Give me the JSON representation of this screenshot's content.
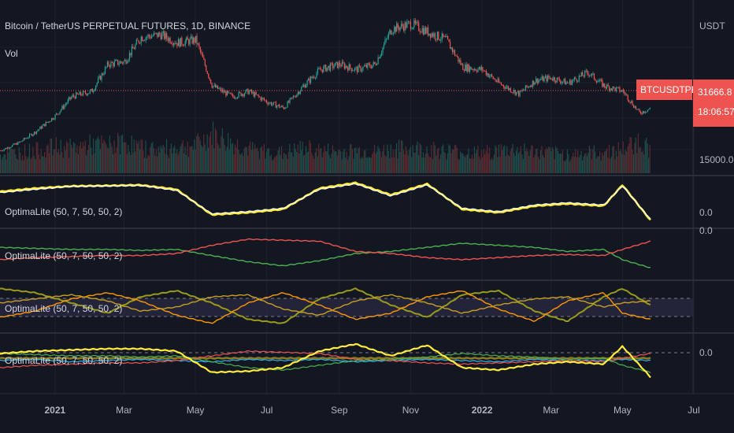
{
  "header": {
    "symbol_title": "Bitcoin / TetherUS PERPETUAL FUTURES, 1D, BINANCE",
    "vol_label": "Vol",
    "currency": "USDT"
  },
  "price_tag": {
    "ticker": "BTCUSDTPERP",
    "price": "31666.8",
    "countdown": "18:06:57",
    "color": "#ef5350"
  },
  "colors": {
    "background": "#131722",
    "grid": "#1e222d",
    "separator": "#2a2e39",
    "text": "#b2b5be",
    "up": "#26a69a",
    "down": "#ef5350",
    "yellow": "#ffeb3b",
    "white": "#ffffff",
    "green": "#4caf50",
    "red": "#ef5350",
    "olive": "#9a9a1a",
    "orange": "#ff9800",
    "cyan": "#29b6f6"
  },
  "chart_data": [
    {
      "type": "candlestick",
      "title": "Bitcoin / TetherUS PERPETUAL FUTURES, 1D, BINANCE",
      "x": [
        "2020-11-15",
        "2020-12-01",
        "2020-12-15",
        "2021-01-01",
        "2021-01-15",
        "2021-02-01",
        "2021-02-15",
        "2021-03-01",
        "2021-03-15",
        "2021-04-01",
        "2021-04-15",
        "2021-05-01",
        "2021-05-15",
        "2021-06-01",
        "2021-06-15",
        "2021-07-01",
        "2021-07-15",
        "2021-08-01",
        "2021-08-15",
        "2021-09-01",
        "2021-09-15",
        "2021-10-01",
        "2021-10-15",
        "2021-11-01",
        "2021-11-15",
        "2021-12-01",
        "2021-12-15",
        "2022-01-01",
        "2022-01-15",
        "2022-02-01",
        "2022-02-15",
        "2022-03-01",
        "2022-03-15",
        "2022-04-01",
        "2022-04-15",
        "2022-05-01",
        "2022-05-15",
        "2022-05-25"
      ],
      "close": [
        16000,
        19000,
        23000,
        29000,
        36000,
        38000,
        48000,
        49000,
        58000,
        59000,
        56000,
        57000,
        40000,
        36000,
        38000,
        34000,
        31800,
        40000,
        46000,
        48000,
        46000,
        48000,
        61000,
        63000,
        60000,
        57000,
        47000,
        46000,
        41000,
        37000,
        42000,
        43000,
        41000,
        45000,
        40000,
        38000,
        30000,
        31667
      ],
      "axis_labels": {
        "price_ticks": [
          "15000.0"
        ],
        "last_price": "31666.8"
      }
    },
    {
      "type": "bar",
      "series": [
        {
          "name": "Vol",
          "values": [
            30,
            34,
            36,
            42,
            40,
            46,
            44,
            50,
            40,
            38,
            42,
            44,
            62,
            48,
            38,
            34,
            32,
            40,
            36,
            34,
            36,
            34,
            38,
            40,
            38,
            36,
            34,
            32,
            36,
            38,
            34,
            32,
            30,
            32,
            34,
            38,
            52,
            36
          ]
        }
      ]
    },
    {
      "type": "line",
      "title": "OptimaLite (50, 7, 50, 50, 2)",
      "x": [
        "2020-11-15",
        "2020-12-15",
        "2021-01-15",
        "2021-02-15",
        "2021-03-15",
        "2021-04-15",
        "2021-05-15",
        "2021-06-15",
        "2021-07-15",
        "2021-08-15",
        "2021-09-15",
        "2021-10-15",
        "2021-11-15",
        "2021-12-15",
        "2022-01-15",
        "2022-02-15",
        "2022-03-15",
        "2022-04-15",
        "2022-05-01",
        "2022-05-25"
      ],
      "series": [
        {
          "values": [
            0.45,
            0.6,
            0.7,
            0.72,
            0.75,
            0.55,
            -0.6,
            -0.5,
            -0.35,
            0.6,
            0.85,
            0.3,
            0.8,
            -0.35,
            -0.5,
            -0.2,
            -0.1,
            -0.2,
            0.75,
            -0.85
          ]
        },
        {
          "values": [
            0.4,
            0.55,
            0.68,
            0.7,
            0.72,
            0.5,
            -0.55,
            -0.45,
            -0.3,
            0.55,
            0.8,
            0.25,
            0.75,
            -0.3,
            -0.45,
            -0.15,
            -0.05,
            -0.15,
            0.7,
            -0.8
          ]
        }
      ],
      "axis_labels": {
        "ticks": [
          "0.0"
        ]
      }
    },
    {
      "type": "line",
      "title": "OptimaLite (50, 7, 50, 50, 2)",
      "x": [
        "2020-11-15",
        "2020-12-15",
        "2021-01-15",
        "2021-02-15",
        "2021-03-15",
        "2021-04-15",
        "2021-05-15",
        "2021-06-15",
        "2021-07-15",
        "2021-08-15",
        "2021-09-15",
        "2021-10-15",
        "2021-11-15",
        "2021-12-15",
        "2022-01-15",
        "2022-02-15",
        "2022-03-15",
        "2022-04-15",
        "2022-05-01",
        "2022-05-25"
      ],
      "series": [
        {
          "values": [
            0.3,
            0.25,
            0.2,
            0.2,
            0.15,
            0.2,
            -0.1,
            -0.4,
            -0.6,
            -0.35,
            0.0,
            0.1,
            0.3,
            0.5,
            0.4,
            0.3,
            0.1,
            0.2,
            -0.3,
            -0.7
          ]
        },
        {
          "values": [
            -0.3,
            -0.2,
            -0.15,
            -0.1,
            -0.1,
            0.0,
            0.4,
            0.7,
            0.65,
            0.6,
            0.1,
            0.0,
            -0.2,
            -0.3,
            -0.2,
            -0.1,
            -0.05,
            -0.1,
            0.2,
            0.6
          ]
        }
      ],
      "axis_labels": {
        "ticks": [
          "0.0"
        ]
      }
    },
    {
      "type": "line",
      "title": "OptimaLite (50, 7, 50, 50, 2)",
      "x": [
        "2020-11-15",
        "2020-12-15",
        "2021-01-15",
        "2021-02-15",
        "2021-03-15",
        "2021-04-15",
        "2021-05-15",
        "2021-06-15",
        "2021-07-15",
        "2021-08-15",
        "2021-09-15",
        "2021-10-15",
        "2021-11-15",
        "2021-12-15",
        "2022-01-15",
        "2022-02-15",
        "2022-03-15",
        "2022-04-15",
        "2022-05-01",
        "2022-05-25"
      ],
      "series": [
        {
          "values": [
            0.9,
            0.7,
            0.2,
            -0.3,
            0.5,
            0.8,
            0.2,
            -0.6,
            -0.8,
            0.4,
            0.9,
            0.1,
            -0.5,
            0.6,
            0.8,
            -0.2,
            -0.7,
            0.5,
            0.9,
            0.1
          ]
        },
        {
          "values": [
            -0.5,
            -0.2,
            0.4,
            0.7,
            0.3,
            -0.4,
            -0.8,
            0.2,
            0.7,
            0.1,
            -0.6,
            -0.3,
            0.5,
            0.8,
            -0.1,
            -0.7,
            0.3,
            0.7,
            -0.3,
            -0.6
          ]
        },
        {
          "values": [
            0.2,
            0.4,
            0.6,
            0.3,
            -0.2,
            0.0,
            0.5,
            0.6,
            -0.1,
            -0.4,
            0.3,
            0.6,
            0.2,
            -0.3,
            0.1,
            0.4,
            0.5,
            0.0,
            0.2,
            0.3
          ]
        }
      ]
    },
    {
      "type": "line",
      "title": "OptimaLite (50, 7, 50, 50, 2)",
      "x": [
        "2020-11-15",
        "2020-12-15",
        "2021-01-15",
        "2021-02-15",
        "2021-03-15",
        "2021-04-15",
        "2021-05-15",
        "2021-06-15",
        "2021-07-15",
        "2021-08-15",
        "2021-09-15",
        "2021-10-15",
        "2021-11-15",
        "2021-12-15",
        "2022-01-15",
        "2022-02-15",
        "2022-03-15",
        "2022-04-15",
        "2022-05-01",
        "2022-05-25"
      ],
      "series": [
        {
          "values": [
            0.1,
            0.1,
            0.1,
            0.1,
            0.1,
            0.1,
            0.1,
            0.1,
            0.1,
            0.1,
            0.1,
            0.1,
            0.1,
            0.1,
            0.1,
            0.1,
            0.1,
            0.1,
            0.1,
            0.1
          ]
        },
        {
          "values": [
            0.0,
            0.05,
            -0.05,
            0.0,
            0.05,
            0.0,
            -0.05,
            0.05,
            0.0,
            0.05,
            -0.05,
            0.0,
            0.05,
            0.0,
            -0.05,
            0.05,
            0.0,
            0.0,
            0.05,
            0.0
          ]
        },
        {
          "values": [
            -0.3,
            -0.2,
            -0.15,
            -0.1,
            -0.1,
            0.0,
            0.2,
            0.4,
            0.35,
            0.3,
            0.05,
            0.0,
            -0.1,
            -0.15,
            -0.1,
            -0.05,
            0.0,
            -0.05,
            0.1,
            0.3
          ]
        },
        {
          "values": [
            0.3,
            0.25,
            0.2,
            0.2,
            0.15,
            0.2,
            -0.05,
            -0.3,
            -0.4,
            -0.2,
            0.0,
            0.05,
            0.15,
            0.3,
            0.2,
            0.15,
            0.05,
            0.1,
            -0.2,
            -0.5
          ]
        },
        {
          "values": [
            0.3,
            0.4,
            0.45,
            0.5,
            0.5,
            0.4,
            -0.5,
            -0.45,
            -0.3,
            0.4,
            0.7,
            0.2,
            0.65,
            -0.3,
            -0.4,
            -0.15,
            -0.05,
            -0.15,
            0.6,
            -0.7
          ]
        }
      ],
      "axis_labels": {
        "ticks": [
          "0.0"
        ]
      }
    }
  ],
  "x_axis": {
    "labels": [
      "2021",
      "Mar",
      "May",
      "Jul",
      "Sep",
      "Nov",
      "2022",
      "Mar",
      "May",
      "Jul"
    ]
  }
}
